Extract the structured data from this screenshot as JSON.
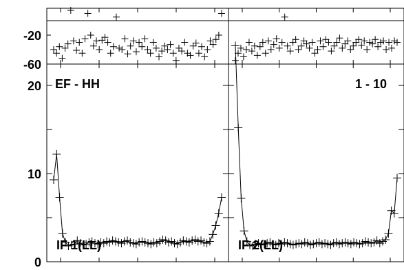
{
  "chart_data": {
    "type": "scatter",
    "panels": [
      {
        "title": "EF - HH",
        "label": "IF 1(LL)",
        "x_range": [
          0,
          40
        ],
        "phase": {
          "ylim": [
            -60,
            60
          ],
          "yticks": [
            -20,
            -60
          ],
          "values": [
            -40,
            -45,
            -36,
            -52,
            -38,
            -32,
            20,
            -28,
            -41,
            -30,
            -45,
            -25,
            10,
            -20,
            -35,
            -28,
            -40,
            -27,
            -23,
            -30,
            -45,
            -36,
            5,
            -38,
            -40,
            -25,
            -46,
            -35,
            -28,
            -43,
            -30,
            -36,
            -25,
            -40,
            -45,
            -30,
            -38,
            -50,
            -42,
            -35,
            -40,
            -33,
            -45,
            -55,
            -38,
            -42,
            -30,
            -45,
            -48,
            -35,
            -31,
            -45,
            -36,
            -50,
            -40,
            -28,
            -33,
            -26,
            -20,
            10
          ]
        },
        "amplitude": {
          "ylim": [
            0,
            25
          ],
          "yticks": [
            0,
            10,
            20
          ],
          "values": [
            9.3,
            12.2,
            7.3,
            3.2,
            2.2,
            1.8,
            1.9,
            2.0,
            2.4,
            2.1,
            1.9,
            2.0,
            2.2,
            2.3,
            2.1,
            2.0,
            2.2,
            2.1,
            2.3,
            2.2,
            2.4,
            2.3,
            2.2,
            2.1,
            2.3,
            2.4,
            2.2,
            2.1,
            2.0,
            2.2,
            2.3,
            2.2,
            2.1,
            2.0,
            2.2,
            2.1,
            2.3,
            2.5,
            2.4,
            2.2,
            2.3,
            2.1,
            2.0,
            2.2,
            2.4,
            2.3,
            2.2,
            2.4,
            2.5,
            2.3,
            2.4,
            2.2,
            2.1,
            2.3,
            3.1,
            4.1,
            5.5,
            7.3
          ]
        }
      },
      {
        "title": "1 - 10",
        "label": "IF 2(LL)",
        "x_range": [
          0,
          40
        ],
        "phase": {
          "ylim": [
            -60,
            60
          ],
          "values": [
            -55,
            -45,
            -38,
            -50,
            -40,
            -30,
            -42,
            -35,
            -48,
            -36,
            -30,
            -45,
            -28,
            -40,
            -33,
            -25,
            -38,
            -30,
            5,
            -35,
            -42,
            -30,
            -26,
            -40,
            -35,
            -28,
            -32,
            -38,
            -30,
            -45,
            -40,
            -28,
            -36,
            -26,
            -30,
            -42,
            -35,
            -30,
            -24,
            -38,
            -32,
            -28,
            -40,
            -35,
            -30,
            -26,
            -34,
            -28,
            -40,
            -30,
            -32,
            -26,
            -36,
            -30,
            -28,
            -40,
            -30,
            -38,
            -28,
            -30
          ]
        },
        "amplitude": {
          "ylim": [
            0,
            25
          ],
          "values": [
            24.5,
            15.2,
            7.2,
            3.5,
            2.3,
            1.9,
            1.8,
            2.0,
            2.1,
            1.9,
            2.0,
            2.1,
            2.2,
            2.0,
            1.9,
            2.1,
            2.0,
            2.2,
            2.1,
            2.0,
            1.9,
            2.0,
            2.1,
            2.0,
            2.2,
            2.1,
            1.9,
            2.0,
            2.1,
            2.2,
            2.0,
            2.1,
            2.0,
            1.9,
            2.1,
            2.2,
            2.0,
            2.1,
            2.2,
            2.1,
            2.0,
            2.2,
            2.1,
            2.0,
            2.1,
            2.3,
            2.2,
            2.1,
            2.2,
            2.4,
            2.1,
            2.3,
            2.5,
            3.2,
            5.8,
            5.5,
            9.5
          ]
        }
      }
    ],
    "xlabel": "",
    "ylabel": "",
    "grid": false,
    "legend": "none"
  }
}
